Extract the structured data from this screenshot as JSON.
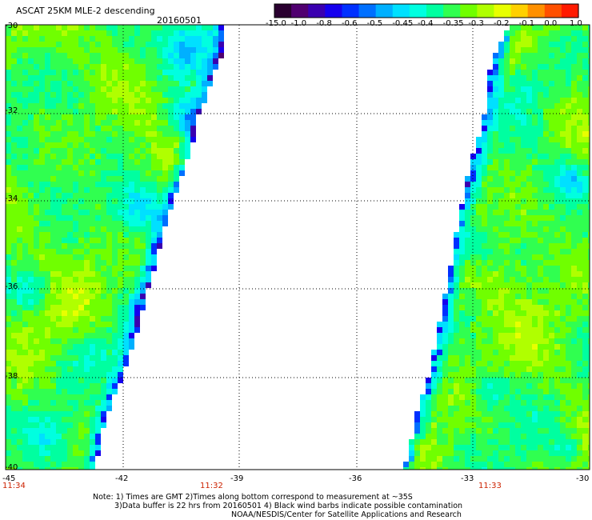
{
  "header": {
    "title": "ASCAT 25KM MLE-2 descending",
    "date": "20160501"
  },
  "colorbar": {
    "colors": [
      "#2a0030",
      "#500070",
      "#3a00b0",
      "#1500ee",
      "#0030ff",
      "#0070ff",
      "#00b0ff",
      "#00e0ff",
      "#00ffe0",
      "#00ffa0",
      "#30ff50",
      "#70ff00",
      "#b0ff00",
      "#e8ff00",
      "#ffd000",
      "#ff9000",
      "#ff5000",
      "#ff1a00"
    ],
    "labels": [
      "-15.0",
      "-1.0",
      "-0.8",
      "-0.6",
      "-0.5",
      "-0.45",
      "-0.4",
      "-0.35",
      "-0.3",
      "-0.2",
      "-0.1",
      "0.0",
      "1.0"
    ]
  },
  "axes": {
    "y_labels": [
      "-30",
      "-32",
      "-34",
      "-36",
      "-38",
      "-40"
    ],
    "x_labels": [
      "-45",
      "-42",
      "-39",
      "-36",
      "-33",
      "-30"
    ]
  },
  "times": [
    "11:34",
    "11:32",
    "11:33"
  ],
  "notes": [
    "Note: 1) Times are GMT 2)Times along bottom correspond to measurement at ~35S",
    "3)Data buffer is 22 hrs from 20160501 4) Black wind barbs indicate possible contamination",
    "NOAA/NESDIS/Center for Satellite Applications and Research"
  ]
}
